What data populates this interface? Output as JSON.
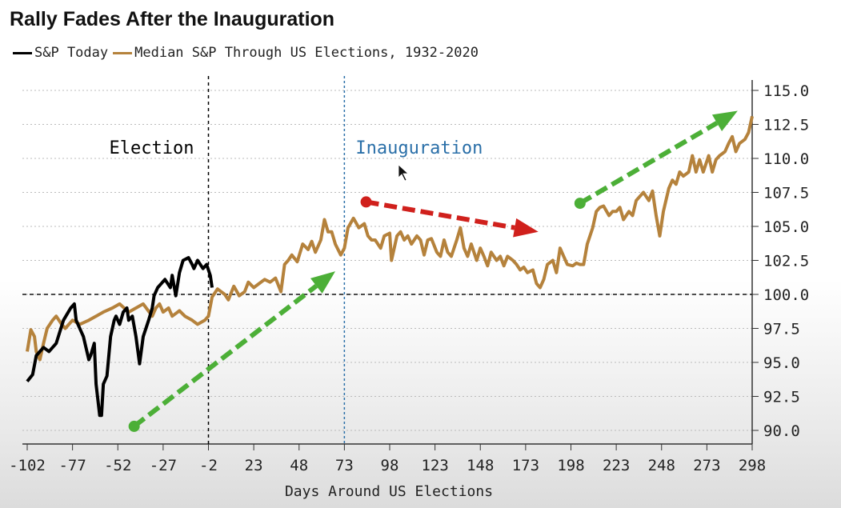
{
  "chart_data": {
    "type": "line",
    "title": "Rally Fades After the Inauguration",
    "xlabel": "Days Around US Elections",
    "ylabel": "",
    "xlim": [
      -102,
      298
    ],
    "ylim": [
      90,
      115
    ],
    "x_ticks": [
      -102,
      -77,
      -52,
      -27,
      -2,
      23,
      48,
      73,
      98,
      123,
      148,
      173,
      198,
      223,
      248,
      273,
      298
    ],
    "y_ticks": [
      "90.0",
      "92.5",
      "95.0",
      "97.5",
      "100.0",
      "102.5",
      "105.0",
      "107.5",
      "110.0",
      "112.5",
      "115.0"
    ],
    "y_axis_side": "right",
    "grid": true,
    "legend_position": "top-left",
    "reference_line_y": 100,
    "series": [
      {
        "name": "S&P Today",
        "color": "#000000",
        "x": [
          -102,
          -99,
          -97,
          -93,
          -90,
          -86,
          -82,
          -78,
          -76,
          -75,
          -73,
          -71,
          -68,
          -67,
          -65,
          -64,
          -62,
          -61,
          -60,
          -58,
          -56,
          -54,
          -53,
          -51,
          -49,
          -47,
          -46,
          -44,
          -42,
          -40,
          -38,
          -35,
          -33,
          -32,
          -30,
          -28,
          -26,
          -23,
          -22,
          -20,
          -18,
          -16,
          -13,
          -11,
          -10,
          -8,
          -5,
          -3,
          -1,
          0
        ],
        "y": [
          93.6,
          94.1,
          95.5,
          96.1,
          95.8,
          96.4,
          98.1,
          99.0,
          99.3,
          98.1,
          97.5,
          96.9,
          95.2,
          95.5,
          96.4,
          93.4,
          91.1,
          91.1,
          93.4,
          94.0,
          96.9,
          98.1,
          98.4,
          97.8,
          98.7,
          99.0,
          98.1,
          98.4,
          96.9,
          94.9,
          96.9,
          98.1,
          99.0,
          99.9,
          100.5,
          100.8,
          101.1,
          100.5,
          101.4,
          99.9,
          101.6,
          102.5,
          102.7,
          102.2,
          101.9,
          102.5,
          101.9,
          102.2,
          101.4,
          100.5
        ]
      },
      {
        "name": "Median S&P Through US Elections, 1932-2020",
        "color": "#b5823c",
        "x": [
          -102,
          -100,
          -98,
          -97,
          -95,
          -93,
          -91,
          -88,
          -86,
          -83,
          -81,
          -77,
          -73,
          -68,
          -64,
          -60,
          -55,
          -51,
          -46,
          -42,
          -38,
          -33,
          -31,
          -29,
          -27,
          -24,
          -22,
          -20,
          -18,
          -15,
          -11,
          -8,
          -4,
          -2,
          0,
          3,
          7,
          9,
          12,
          15,
          18,
          20,
          23,
          26,
          29,
          32,
          35,
          38,
          40,
          42,
          44,
          47,
          50,
          53,
          55,
          57,
          60,
          62,
          64,
          66,
          68,
          71,
          73,
          75,
          78,
          81,
          84,
          86,
          88,
          90,
          93,
          95,
          98,
          99,
          102,
          104,
          106,
          108,
          110,
          113,
          115,
          117,
          119,
          121,
          124,
          126,
          128,
          130,
          132,
          135,
          137,
          139,
          141,
          143,
          146,
          148,
          150,
          152,
          154,
          157,
          159,
          161,
          163,
          166,
          168,
          170,
          172,
          174,
          177,
          179,
          181,
          183,
          185,
          188,
          190,
          192,
          194,
          196,
          199,
          201,
          203,
          205,
          207,
          210,
          212,
          214,
          216,
          219,
          221,
          223,
          225,
          227,
          230,
          232,
          234,
          236,
          238,
          241,
          243,
          245,
          247,
          249,
          252,
          254,
          256,
          258,
          260,
          263,
          265,
          267,
          269,
          271,
          274,
          276,
          278,
          280,
          283,
          285,
          287,
          289,
          291,
          294,
          296,
          298
        ],
        "y": [
          95.8,
          97.4,
          96.9,
          95.8,
          95.2,
          96.4,
          97.5,
          98.1,
          98.4,
          97.8,
          97.5,
          98.1,
          97.8,
          98.1,
          98.4,
          98.7,
          99.0,
          99.3,
          98.7,
          99.0,
          99.3,
          98.4,
          99.0,
          99.3,
          98.7,
          99.0,
          98.4,
          98.6,
          98.8,
          98.4,
          98.1,
          97.8,
          98.1,
          98.4,
          99.8,
          100.4,
          100.0,
          99.6,
          100.6,
          99.9,
          100.2,
          100.9,
          100.5,
          100.8,
          101.1,
          100.9,
          101.2,
          100.2,
          102.2,
          102.5,
          102.9,
          102.4,
          103.7,
          103.3,
          103.9,
          103.1,
          104.0,
          105.5,
          104.6,
          104.6,
          103.7,
          102.9,
          103.4,
          104.9,
          105.6,
          104.9,
          105.2,
          104.3,
          104.0,
          104.0,
          103.4,
          104.3,
          104.5,
          102.5,
          104.3,
          104.6,
          104.0,
          104.3,
          103.7,
          104.3,
          104.0,
          102.9,
          104.0,
          104.1,
          103.1,
          102.8,
          104.0,
          103.1,
          102.8,
          104.0,
          104.9,
          103.4,
          102.8,
          103.7,
          102.5,
          103.4,
          102.8,
          102.1,
          103.1,
          102.5,
          102.8,
          102.1,
          102.8,
          102.5,
          102.2,
          101.8,
          102.0,
          101.6,
          101.8,
          100.8,
          100.5,
          101.1,
          102.2,
          102.5,
          101.6,
          103.4,
          102.8,
          102.2,
          102.1,
          102.3,
          102.2,
          102.2,
          103.7,
          104.9,
          106.1,
          106.4,
          106.5,
          105.8,
          106.1,
          106.1,
          106.4,
          105.5,
          106.1,
          105.8,
          106.9,
          107.2,
          107.5,
          106.9,
          107.6,
          105.8,
          104.3,
          106.1,
          107.8,
          108.4,
          108.1,
          109.0,
          108.7,
          109.0,
          110.2,
          109.0,
          109.9,
          109.0,
          110.2,
          109.0,
          109.9,
          110.2,
          110.5,
          111.1,
          111.6,
          110.5,
          111.1,
          111.4,
          111.9,
          113.1
        ]
      }
    ],
    "annotations": [
      {
        "type": "vline",
        "x": -2,
        "label": "Election",
        "color": "#000000"
      },
      {
        "type": "vline",
        "x": 73,
        "label": "Inauguration",
        "color": "#2a6fa8"
      },
      {
        "type": "arrow",
        "from": [
          -43,
          90.3
        ],
        "to": [
          68,
          101.7
        ],
        "color": "#4caf37"
      },
      {
        "type": "arrow",
        "from": [
          85,
          106.8
        ],
        "to": [
          180,
          104.6
        ],
        "color": "#d0201c"
      },
      {
        "type": "arrow",
        "from": [
          203,
          106.7
        ],
        "to": [
          290,
          113.5
        ],
        "color": "#4caf37"
      }
    ]
  }
}
